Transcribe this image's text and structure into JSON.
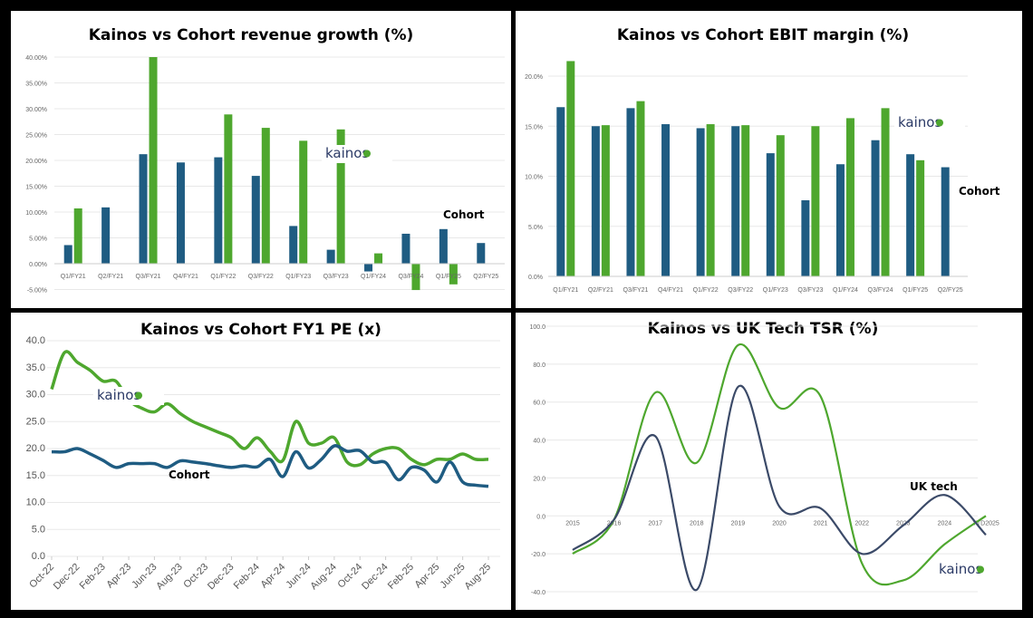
{
  "colors": {
    "kainos": "#4EA72E",
    "cohort": "#1F5C82",
    "uktech": "#3B4A68",
    "grid": "#e8e8e8"
  },
  "logo_text": "kainos",
  "chart_data": [
    {
      "type": "bar",
      "title": "Kainos vs Cohort revenue growth (%)",
      "categories": [
        "Q1/FY21",
        "Q2/FY21",
        "Q3/FY21",
        "Q4/FY21",
        "Q1/FY22",
        "Q3/FY22",
        "Q1/FY23",
        "Q3/FY23",
        "Q1/FY24",
        "Q3/FY24",
        "Q1/FY25",
        "Q2/FY25"
      ],
      "yticks": [
        "-5.00%",
        "0.00%",
        "5.00%",
        "10.00%",
        "15.00%",
        "20.00%",
        "25.00%",
        "30.00%",
        "35.00%",
        "40.00%"
      ],
      "ylim": [
        -5,
        40
      ],
      "series": [
        {
          "name": "Cohort",
          "values": [
            3.6,
            10.9,
            21.2,
            19.6,
            20.6,
            17.0,
            7.3,
            2.7,
            -1.5,
            5.8,
            6.7,
            4.0
          ]
        },
        {
          "name": "Kainos",
          "values": [
            10.7,
            null,
            40.0,
            null,
            28.9,
            26.3,
            23.8,
            26.0,
            2.0,
            -5.1,
            -4.0,
            null
          ]
        }
      ],
      "annotation": "Cohort"
    },
    {
      "type": "bar",
      "title": "Kainos vs Cohort EBIT margin (%)",
      "categories": [
        "Q1/FY21",
        "Q2/FY21",
        "Q3/FY21",
        "Q4/FY21",
        "Q1/FY22",
        "Q3/FY22",
        "Q1/FY23",
        "Q3/FY23",
        "Q1/FY24",
        "Q3/FY24",
        "Q1/FY25",
        "Q2/FY25"
      ],
      "yticks": [
        "0.0%",
        "5.0%",
        "10.0%",
        "15.0%",
        "20.0%"
      ],
      "ylim": [
        0,
        20
      ],
      "series": [
        {
          "name": "Cohort",
          "values": [
            16.9,
            15.0,
            16.8,
            15.2,
            14.8,
            15.0,
            12.3,
            7.6,
            11.2,
            13.6,
            12.2,
            10.9
          ]
        },
        {
          "name": "Kainos",
          "values": [
            21.5,
            15.1,
            17.5,
            null,
            15.2,
            15.1,
            14.1,
            15.0,
            15.8,
            16.8,
            11.6,
            null
          ]
        }
      ],
      "annotation": "Cohort"
    },
    {
      "type": "line",
      "title": "Kainos vs Cohort FY1 PE (x)",
      "xlabels": [
        "Oct-22",
        "Dec-22",
        "Feb-23",
        "Apr-23",
        "Jun-23",
        "Aug-23",
        "Oct-23",
        "Dec-23",
        "Feb-24",
        "Apr-24",
        "Jun-24",
        "Aug-24",
        "Oct-24",
        "Dec-24",
        "Feb-25",
        "Apr-25",
        "Jun-25",
        "Aug-25"
      ],
      "yticks": [
        "0.0",
        "5.0",
        "10.0",
        "15.0",
        "20.0",
        "25.0",
        "30.0",
        "35.0",
        "40.0"
      ],
      "ylim": [
        0,
        40
      ],
      "series": [
        {
          "name": "Kainos",
          "values": [
            31,
            37.8,
            36,
            34.5,
            32.5,
            32.5,
            29,
            27.5,
            26.8,
            28.3,
            26.5,
            25,
            24,
            23,
            22,
            20,
            22,
            19.5,
            17.8,
            25,
            21,
            21,
            22,
            17.5,
            17,
            19,
            20,
            20,
            18,
            17,
            18,
            18,
            19,
            18,
            18
          ]
        },
        {
          "name": "Cohort",
          "values": [
            19.4,
            19.4,
            20,
            19,
            17.8,
            16.5,
            17.2,
            17.2,
            17.2,
            16.5,
            17.7,
            17.5,
            17.2,
            16.8,
            16.5,
            16.8,
            16.6,
            18,
            14.8,
            19.4,
            16.4,
            18,
            20.5,
            19.5,
            19.6,
            17.5,
            17.4,
            14.2,
            16.5,
            16,
            13.8,
            17.5,
            13.8,
            13.2,
            13
          ]
        }
      ],
      "annotation": "Cohort"
    },
    {
      "type": "line",
      "title": "Kainos vs UK Tech TSR (%)",
      "xlabels": [
        "2015",
        "2016",
        "2017",
        "2018",
        "2019",
        "2020",
        "2021",
        "2022",
        "2023",
        "2024",
        "YTD2025"
      ],
      "yticks": [
        "-40.0",
        "-20.0",
        "0.0",
        "20.0",
        "40.0",
        "60.0",
        "80.0",
        "100.0"
      ],
      "ylim": [
        -40,
        100
      ],
      "series": [
        {
          "name": "Kainos",
          "values": [
            -20,
            -2,
            65,
            28,
            90,
            57,
            63,
            -25,
            -34,
            -15,
            0
          ]
        },
        {
          "name": "UK tech",
          "values": [
            -18,
            -2,
            42,
            -39,
            68,
            5,
            4,
            -20,
            -5,
            11,
            -10
          ]
        }
      ],
      "annotation": "UK tech"
    }
  ]
}
